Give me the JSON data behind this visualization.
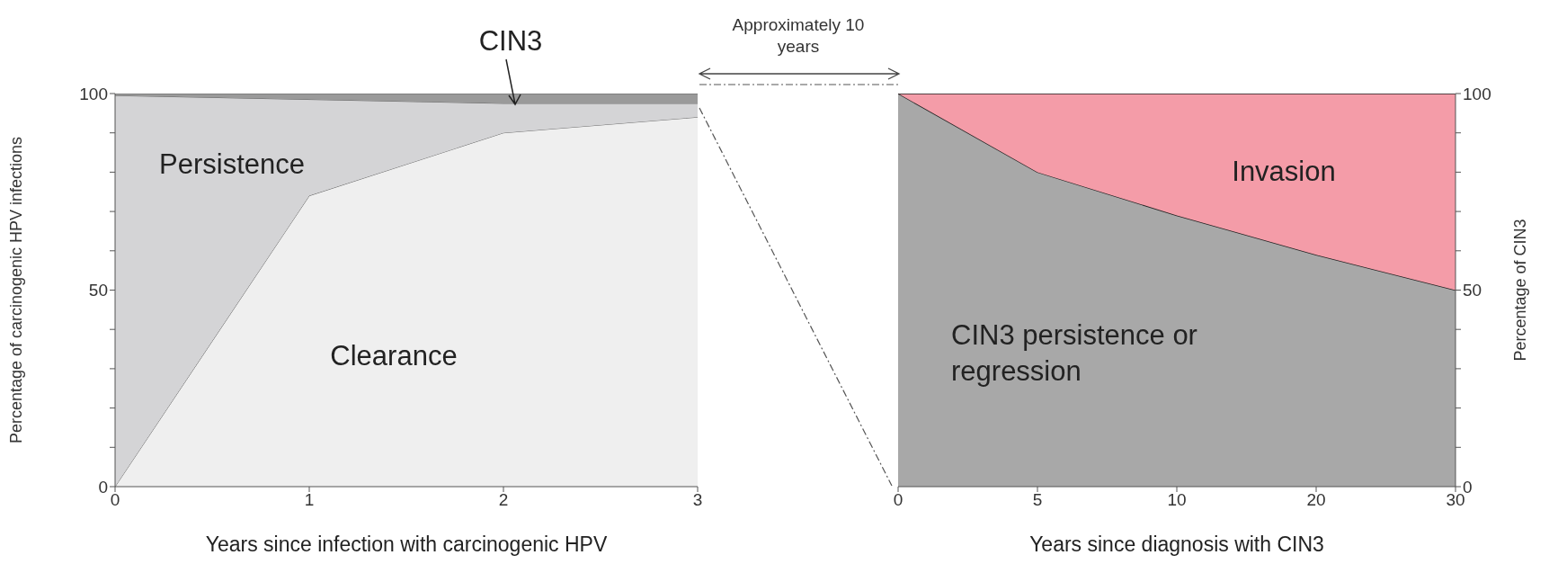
{
  "chart_data": [
    {
      "type": "area",
      "stacked": true,
      "xlabel": "Years since infection with carcinogenic HPV",
      "ylabel": "Percentage of carcinogenic HPV infections",
      "x": [
        0,
        1,
        2,
        3
      ],
      "xlim": [
        0,
        3
      ],
      "xticks": [
        0,
        1,
        2,
        3
      ],
      "ylim": [
        0,
        100
      ],
      "yticks": [
        0,
        {
          "value": 10,
          "label": null
        },
        {
          "value": 20,
          "label": null
        },
        {
          "value": 30,
          "label": null
        },
        {
          "value": 40,
          "label": null
        },
        50,
        {
          "value": 60,
          "label": null
        },
        {
          "value": 70,
          "label": null
        },
        {
          "value": 80,
          "label": null
        },
        {
          "value": 90,
          "label": null
        },
        100
      ],
      "grid": false,
      "series": [
        {
          "name": "Clearance",
          "color": "#efefef",
          "values": [
            0,
            74,
            90,
            94
          ]
        },
        {
          "name": "Persistence",
          "color": "#d4d4d6",
          "values": [
            99.5,
            24.5,
            7.5,
            3.5
          ]
        },
        {
          "name": "CIN3",
          "color": "#9a9a9a",
          "values": [
            0.5,
            1.5,
            2.5,
            2.5
          ]
        }
      ],
      "annotations": [
        "Approximately 10 years"
      ]
    },
    {
      "type": "area",
      "stacked": true,
      "xlabel": "Years since diagnosis with CIN3",
      "ylabel": "Percentage of CIN3",
      "categories": [
        "0",
        "5",
        "10",
        "20",
        "30"
      ],
      "ylim": [
        0,
        100
      ],
      "yticks": [
        0,
        {
          "value": 10,
          "label": null
        },
        {
          "value": 20,
          "label": null
        },
        {
          "value": 30,
          "label": null
        },
        {
          "value": 40,
          "label": null
        },
        50,
        {
          "value": 60,
          "label": null
        },
        {
          "value": 70,
          "label": null
        },
        {
          "value": 80,
          "label": null
        },
        {
          "value": 90,
          "label": null
        },
        100
      ],
      "grid": false,
      "series": [
        {
          "name": "CIN3 persistence or regression",
          "color": "#a8a8a8",
          "values": [
            100,
            80,
            69,
            59,
            50
          ]
        },
        {
          "name": "Invasion",
          "color": "#f49ca8",
          "values": [
            0,
            20,
            31,
            41,
            50
          ]
        }
      ]
    }
  ]
}
